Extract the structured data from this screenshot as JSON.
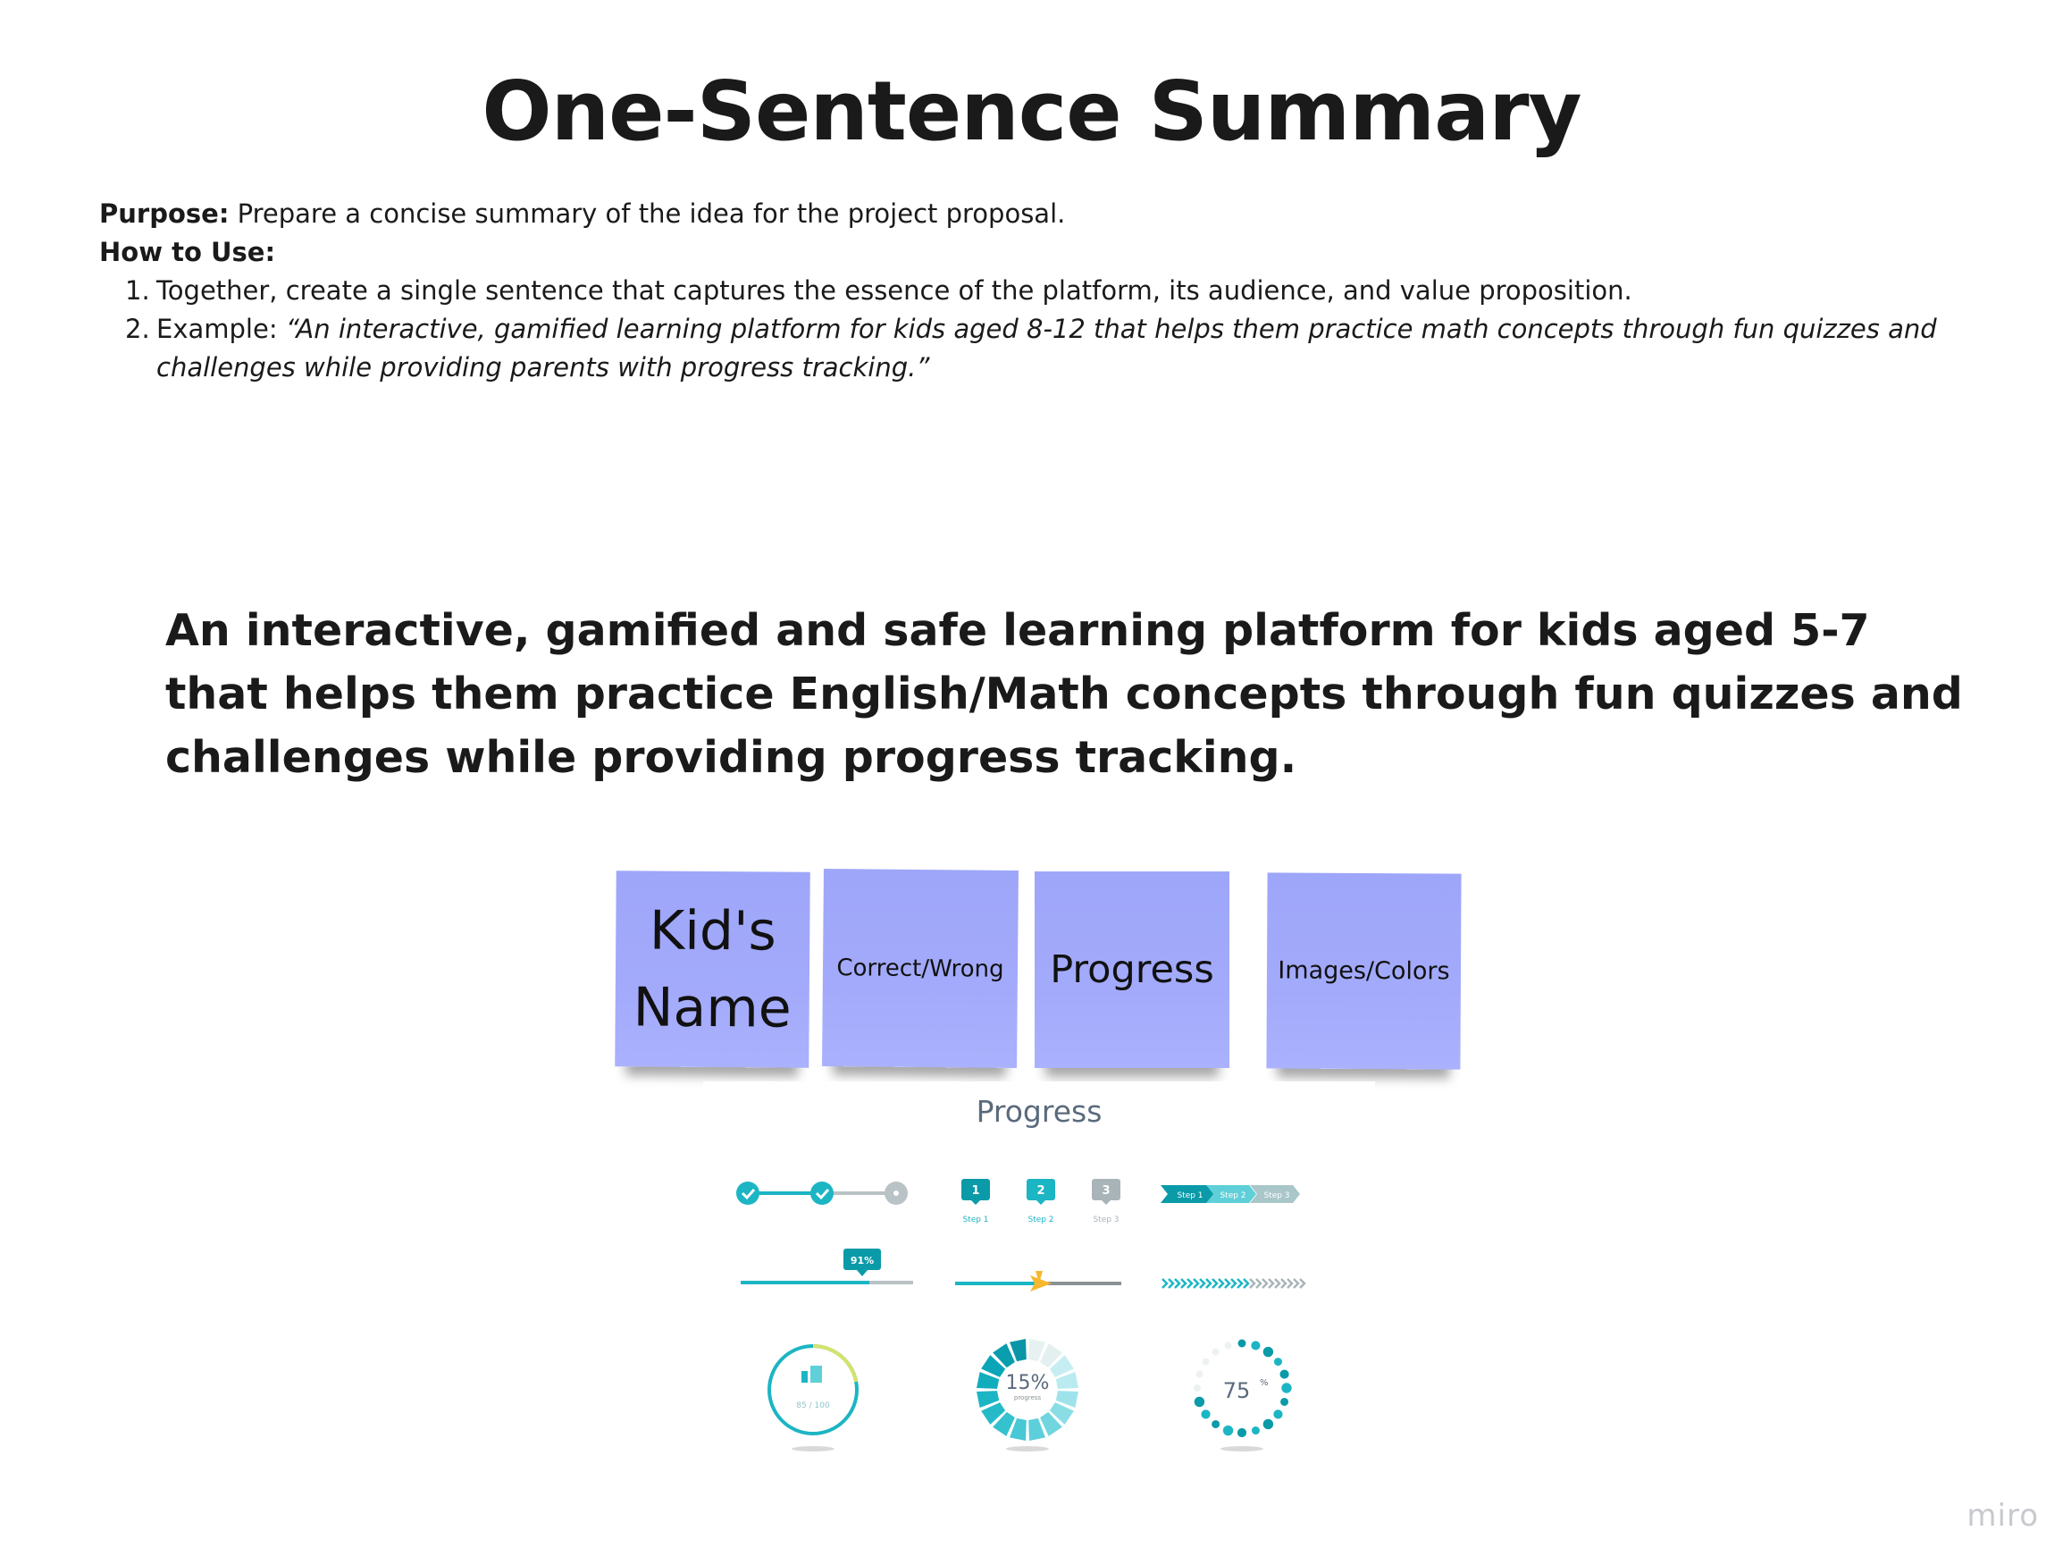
{
  "title": "One-Sentence Summary",
  "instructions": {
    "purpose_label": "Purpose:",
    "purpose_text": " Prepare a concise summary of the idea for the project proposal.",
    "how_label": "How to Use:",
    "steps": [
      {
        "num": "1.",
        "prefix": "",
        "text": "Together, create a single sentence that captures the essence of the platform, its audience, and value proposition."
      },
      {
        "num": "2.",
        "prefix": "Example: ",
        "text": "“An interactive, gamified learning platform for kids aged 8-12 that helps them practice math concepts through fun quizzes and challenges while providing parents with progress tracking.”"
      }
    ]
  },
  "summary": "An interactive, gamified and safe learning platform for kids aged 5-7 that helps them practice English/Math concepts through fun quizzes and challenges while providing progress tracking.",
  "sticky_notes": [
    {
      "line1": "Kid's",
      "line2": "Name"
    },
    {
      "line1": "Correct/Wrong",
      "line2": ""
    },
    {
      "line1": "Progress",
      "line2": ""
    },
    {
      "line1": "Images/Colors",
      "line2": ""
    }
  ],
  "progress_image": {
    "title": "Progress",
    "step_labels": [
      "1",
      "2",
      "3"
    ],
    "step_captions": [
      "Step 1",
      "Step 2",
      "Step 3"
    ],
    "arrow_steps": [
      "Step 1",
      "Step 2",
      "Step 3"
    ],
    "bubble_value": "91%",
    "score": "85 / 100",
    "ring_percent": "15%",
    "ring_caption": "progress",
    "dots_value": "75",
    "dots_unit": "%",
    "accent_color": "#1cb5c4",
    "dark_accent_color": "#0a9aa8",
    "muted_color": "#a9b4b8"
  },
  "watermark": "miro"
}
